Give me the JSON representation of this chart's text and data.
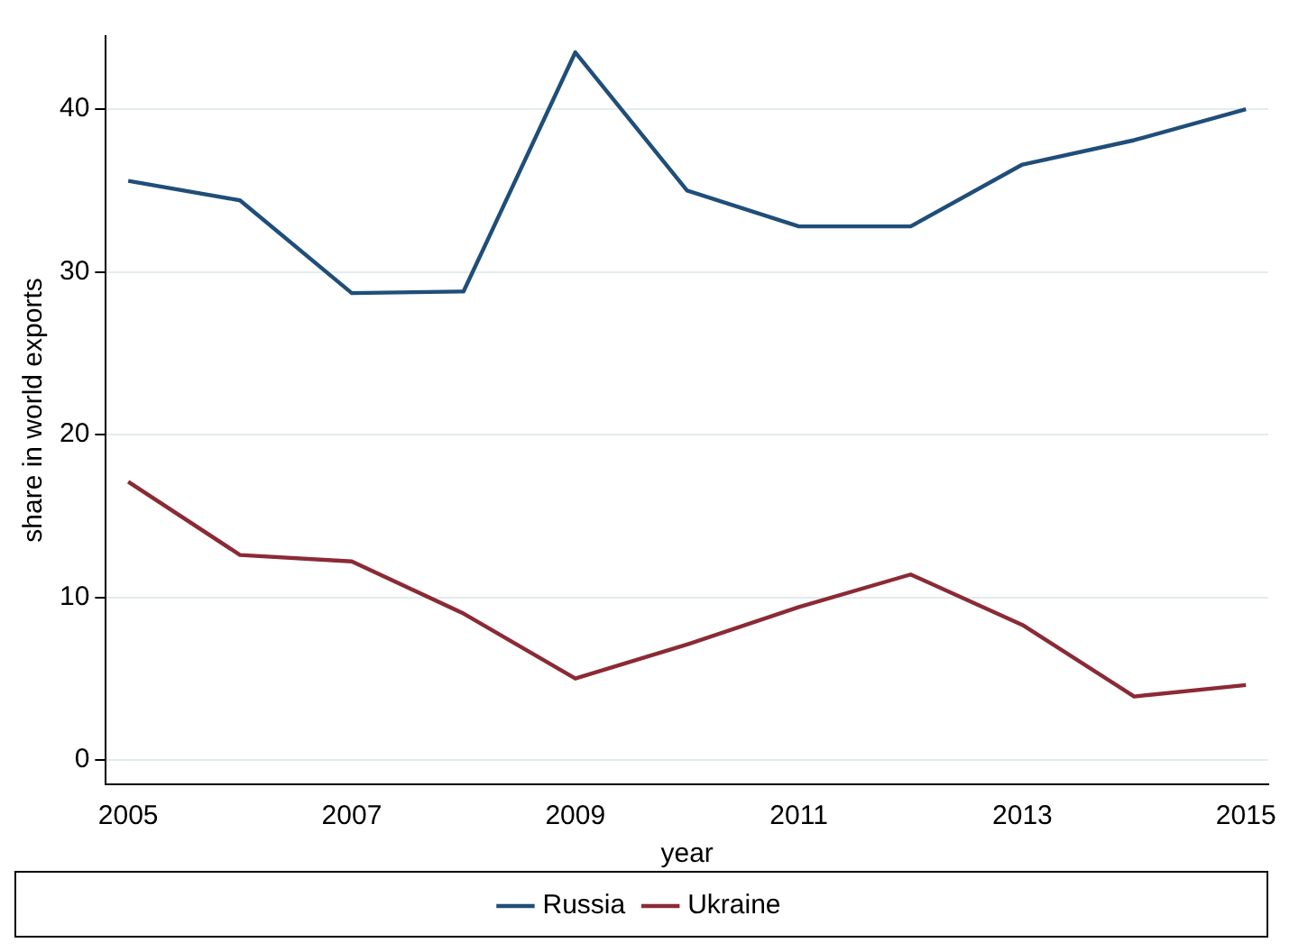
{
  "chart_data": {
    "type": "line",
    "xlabel": "year",
    "ylabel": "share in world exports",
    "x": [
      2005,
      2006,
      2007,
      2008,
      2009,
      2010,
      2011,
      2012,
      2013,
      2014,
      2015
    ],
    "series": [
      {
        "name": "Russia",
        "color": "#1f4e79",
        "values": [
          35.6,
          34.4,
          28.7,
          28.8,
          43.5,
          35.0,
          32.8,
          32.8,
          36.6,
          38.1,
          40.0
        ]
      },
      {
        "name": "Ukraine",
        "color": "#8b2a35",
        "values": [
          17.1,
          12.6,
          12.2,
          9.0,
          5.0,
          7.1,
          9.4,
          11.4,
          8.3,
          3.9,
          4.6
        ]
      }
    ],
    "xlim": [
      2004.8,
      2015.2
    ],
    "xticks": [
      2005,
      2007,
      2009,
      2011,
      2013,
      2015
    ],
    "ylim": [
      -1.5,
      44.5
    ],
    "yticks": [
      0,
      10,
      20,
      30,
      40
    ],
    "grid": "y",
    "legend": "bottom",
    "marker": "none",
    "line_style": "solid"
  }
}
